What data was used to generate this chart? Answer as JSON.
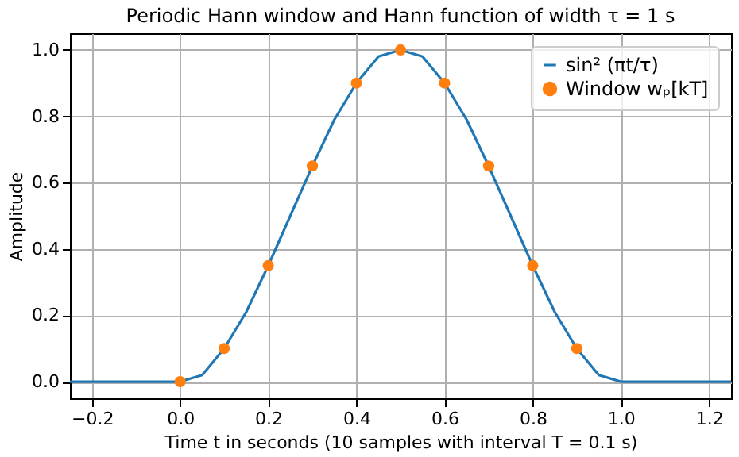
{
  "chart_data": {
    "type": "line",
    "title": "Periodic Hann window and Hann function of width τ = 1 s",
    "xlabel": "Time t in seconds (10 samples with interval T = 0.1 s)",
    "ylabel": "Amplitude",
    "series": [
      {
        "name": "sin² (πt/τ)",
        "color": "#1f77b4",
        "marker": "none",
        "x": [
          -0.25,
          0,
          0.05,
          0.1,
          0.15,
          0.2,
          0.25,
          0.3,
          0.35,
          0.4,
          0.45,
          0.5,
          0.55,
          0.6,
          0.65,
          0.7,
          0.75,
          0.8,
          0.85,
          0.9,
          0.95,
          1,
          1.25
        ],
        "values": [
          0,
          0,
          0.02,
          0.1,
          0.21,
          0.35,
          0.5,
          0.65,
          0.79,
          0.9,
          0.98,
          1,
          0.98,
          0.9,
          0.79,
          0.65,
          0.5,
          0.35,
          0.21,
          0.1,
          0.02,
          0,
          0
        ]
      },
      {
        "name": "Window wₚ[kT]",
        "type": "scatter",
        "color": "#ff7f0e",
        "marker": "circle",
        "x": [
          0,
          0.1,
          0.2,
          0.3,
          0.4,
          0.5,
          0.6,
          0.7,
          0.8,
          0.9
        ],
        "values": [
          0,
          0.1,
          0.35,
          0.65,
          0.9,
          1,
          0.9,
          0.65,
          0.35,
          0.1
        ]
      }
    ],
    "xlim": [
      -0.25,
      1.25
    ],
    "ylim": [
      -0.05,
      1.05
    ],
    "xticks": [
      {
        "value": -0.2,
        "label": "−0.2"
      },
      {
        "value": 0,
        "label": "0.0"
      },
      {
        "value": 0.2,
        "label": "0.2"
      },
      {
        "value": 0.4,
        "label": "0.4"
      },
      {
        "value": 0.6,
        "label": "0.6"
      },
      {
        "value": 0.8,
        "label": "0.8"
      },
      {
        "value": 1,
        "label": "1.0"
      },
      {
        "value": 1.2,
        "label": "1.2"
      }
    ],
    "yticks": [
      {
        "value": 0,
        "label": "0.0"
      },
      {
        "value": 0.2,
        "label": "0.2"
      },
      {
        "value": 0.4,
        "label": "0.4"
      },
      {
        "value": 0.6,
        "label": "0.6"
      },
      {
        "value": 0.8,
        "label": "0.8"
      },
      {
        "value": 1,
        "label": "1.0"
      }
    ],
    "grid": true,
    "legend": "top right"
  }
}
